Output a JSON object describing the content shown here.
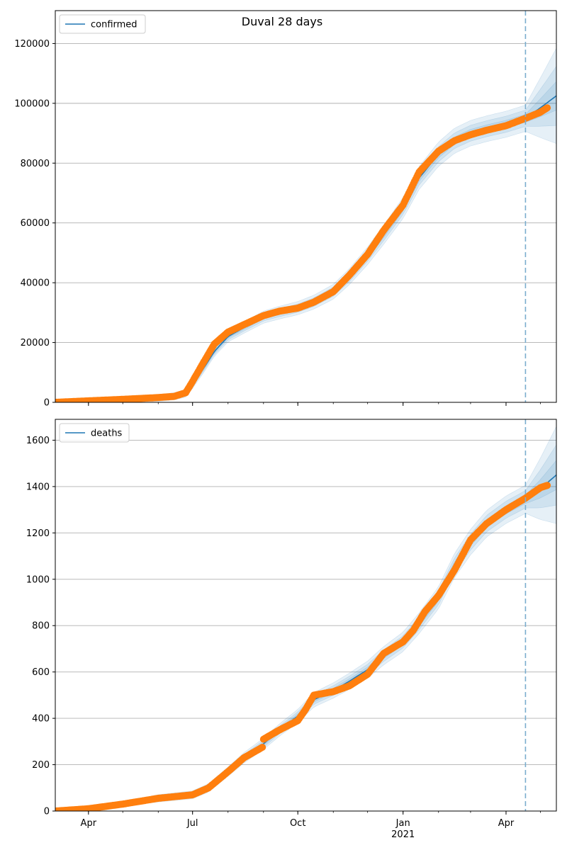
{
  "figure": {
    "title": "Duval 28 days"
  },
  "colors": {
    "model_line": "#1f77b4",
    "observed_points": "#ff7f0e",
    "band": "#1f77b4",
    "forecast_line": "#7aadce",
    "grid": "#b0b0b0"
  },
  "chart_data": [
    {
      "type": "line",
      "panel": "top",
      "legend_label": "confirmed",
      "legend_placement": "upper-left",
      "grid": "horizontal",
      "x_ticks": [
        "Apr",
        "Jul",
        "Oct",
        "Jan",
        "Apr"
      ],
      "x_tick_dates": [
        "2020-04-01",
        "2020-07-01",
        "2020-10-01",
        "2021-01-01",
        "2021-04-01"
      ],
      "x_year_label": "2021",
      "x_range": [
        "2020-03-03",
        "2021-05-15"
      ],
      "forecast_start": "2021-04-18",
      "ylim": [
        0,
        131000
      ],
      "y_ticks": [
        0,
        20000,
        40000,
        60000,
        80000,
        100000,
        120000
      ],
      "series": [
        {
          "role": "model",
          "dates": [
            "2020-03-03",
            "2020-04-01",
            "2020-05-01",
            "2020-06-01",
            "2020-06-15",
            "2020-06-25",
            "2020-07-01",
            "2020-07-10",
            "2020-07-20",
            "2020-08-01",
            "2020-08-15",
            "2020-09-01",
            "2020-09-15",
            "2020-10-01",
            "2020-10-15",
            "2020-11-01",
            "2020-11-15",
            "2020-12-01",
            "2020-12-15",
            "2021-01-01",
            "2021-01-15",
            "2021-02-01",
            "2021-02-15",
            "2021-03-01",
            "2021-03-15",
            "2021-04-01",
            "2021-04-18",
            "2021-05-01",
            "2021-05-15"
          ],
          "values": [
            0,
            500,
            1000,
            1500,
            2000,
            3000,
            6000,
            11000,
            17000,
            22000,
            25000,
            28500,
            30000,
            31500,
            33500,
            37000,
            42000,
            49000,
            56000,
            65000,
            75000,
            83000,
            87500,
            90000,
            91500,
            93000,
            95000,
            98500,
            102500
          ]
        },
        {
          "role": "observed",
          "dates": [
            "2020-03-03",
            "2020-04-01",
            "2020-05-01",
            "2020-06-01",
            "2020-06-15",
            "2020-06-25",
            "2020-07-01",
            "2020-07-10",
            "2020-07-20",
            "2020-08-01",
            "2020-08-15",
            "2020-09-01",
            "2020-09-15",
            "2020-10-01",
            "2020-10-15",
            "2020-11-01",
            "2020-11-15",
            "2020-12-01",
            "2020-12-15",
            "2021-01-01",
            "2021-01-15",
            "2021-02-01",
            "2021-02-15",
            "2021-03-01",
            "2021-03-15",
            "2021-04-01",
            "2021-04-18",
            "2021-05-01",
            "2021-05-07"
          ],
          "values": [
            0,
            500,
            1000,
            1600,
            2000,
            3200,
            7000,
            13000,
            19500,
            23500,
            26000,
            29000,
            30500,
            31500,
            33500,
            37000,
            42500,
            49500,
            57500,
            66000,
            77000,
            84000,
            87500,
            89500,
            91000,
            92500,
            95000,
            97000,
            98500
          ]
        }
      ]
    },
    {
      "type": "line",
      "panel": "bottom",
      "legend_label": "deaths",
      "legend_placement": "upper-left",
      "grid": "horizontal",
      "x_ticks": [
        "Apr",
        "Jul",
        "Oct",
        "Jan",
        "Apr"
      ],
      "x_tick_dates": [
        "2020-04-01",
        "2020-07-01",
        "2020-10-01",
        "2021-01-01",
        "2021-04-01"
      ],
      "x_year_label": "2021",
      "x_range": [
        "2020-03-03",
        "2021-05-15"
      ],
      "forecast_start": "2021-04-18",
      "ylim": [
        0,
        1690
      ],
      "y_ticks": [
        0,
        200,
        400,
        600,
        800,
        1000,
        1200,
        1400,
        1600
      ],
      "series": [
        {
          "role": "model",
          "dates": [
            "2020-03-03",
            "2020-04-01",
            "2020-05-01",
            "2020-06-01",
            "2020-07-01",
            "2020-07-15",
            "2020-08-01",
            "2020-08-15",
            "2020-09-01",
            "2020-09-15",
            "2020-10-01",
            "2020-10-15",
            "2020-11-01",
            "2020-11-15",
            "2020-12-01",
            "2020-12-15",
            "2021-01-01",
            "2021-01-15",
            "2021-02-01",
            "2021-02-15",
            "2021-03-01",
            "2021-03-15",
            "2021-04-01",
            "2021-04-18",
            "2021-05-01",
            "2021-05-15"
          ],
          "values": [
            0,
            10,
            30,
            55,
            70,
            100,
            170,
            230,
            290,
            350,
            410,
            480,
            520,
            560,
            610,
            670,
            730,
            810,
            920,
            1060,
            1160,
            1240,
            1300,
            1345,
            1390,
            1450
          ]
        },
        {
          "role": "observed",
          "dates": [
            "2020-03-03",
            "2020-04-01",
            "2020-05-01",
            "2020-06-01",
            "2020-07-01",
            "2020-07-15",
            "2020-08-01",
            "2020-08-15",
            "2020-08-31",
            "2020-09-01",
            "2020-09-15",
            "2020-10-01",
            "2020-10-08",
            "2020-10-15",
            "2020-11-01",
            "2020-11-15",
            "2020-12-01",
            "2020-12-15",
            "2021-01-01",
            "2021-01-10",
            "2021-01-20",
            "2021-02-01",
            "2021-02-15",
            "2021-03-01",
            "2021-03-15",
            "2021-04-01",
            "2021-04-18",
            "2021-05-01",
            "2021-05-07"
          ],
          "values": [
            0,
            10,
            30,
            55,
            70,
            100,
            170,
            230,
            275,
            310,
            350,
            390,
            440,
            500,
            515,
            540,
            590,
            680,
            730,
            780,
            860,
            930,
            1040,
            1170,
            1240,
            1300,
            1350,
            1395,
            1405
          ]
        }
      ]
    }
  ]
}
